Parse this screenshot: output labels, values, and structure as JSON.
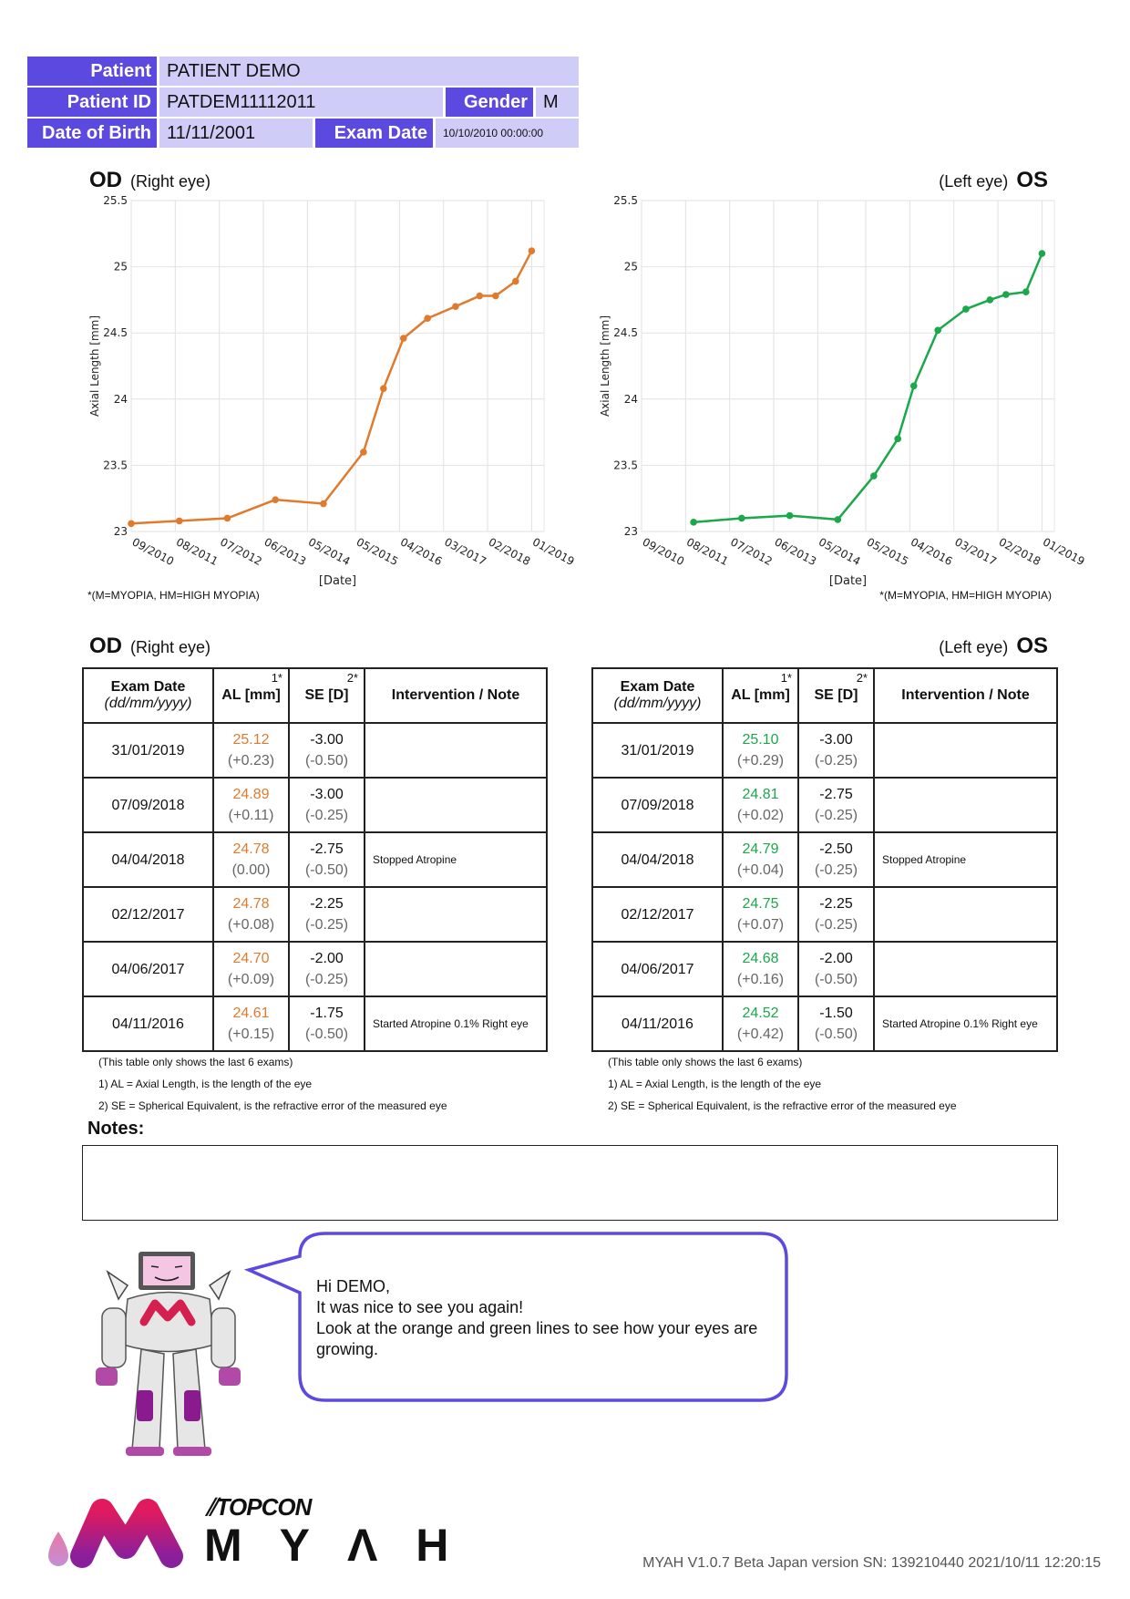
{
  "header": {
    "patient_label": "Patient",
    "patient_value": "PATIENT  DEMO",
    "id_label": "Patient ID",
    "id_value": "PATDEM11112011",
    "gender_label": "Gender",
    "gender_value": "M",
    "dob_label": "Date of Birth",
    "dob_value": "11/11/2001",
    "exam_label": "Exam Date",
    "exam_value": "10/10/2010 00:00:00"
  },
  "colors": {
    "header_label": "#5c4ae0",
    "header_value": "#d0ccf8",
    "od": "#e07b2e",
    "os": "#1aa84a",
    "bubble": "#5c4ae0"
  },
  "od": {
    "code": "OD",
    "name": "(Right eye)"
  },
  "os": {
    "code": "OS",
    "name": "(Left eye)"
  },
  "chart_footnote": "*(M=MYOPIA, HM=HIGH MYOPIA)",
  "chart_data": [
    {
      "type": "line",
      "eye": "OD",
      "ylabel": "Axial Length [mm]",
      "xlabel": "[Date]",
      "ylim": [
        23,
        25.5
      ],
      "yticks": [
        "23",
        "23.5",
        "24",
        "24.5",
        "25",
        "25.5"
      ],
      "xticks": [
        "09/2010",
        "08/2011",
        "07/2012",
        "06/2013",
        "05/2014",
        "05/2015",
        "04/2016",
        "03/2017",
        "02/2018",
        "01/2019"
      ],
      "grid": true,
      "color": "#e07b2e",
      "x": [
        "09/2010",
        "09/2011",
        "09/2012",
        "09/2013",
        "09/2014",
        "07/2015",
        "12/2015",
        "05/2016",
        "11/2016",
        "06/2017",
        "12/2017",
        "04/2018",
        "09/2018",
        "01/2019"
      ],
      "y": [
        23.06,
        23.08,
        23.1,
        23.24,
        23.21,
        23.6,
        24.08,
        24.46,
        24.61,
        24.7,
        24.78,
        24.78,
        24.89,
        25.12
      ]
    },
    {
      "type": "line",
      "eye": "OS",
      "ylabel": "Axial Length [mm]",
      "xlabel": "[Date]",
      "ylim": [
        23,
        25.5
      ],
      "yticks": [
        "23",
        "23.5",
        "24",
        "24.5",
        "25",
        "25.5"
      ],
      "xticks": [
        "09/2010",
        "08/2011",
        "07/2012",
        "06/2013",
        "05/2014",
        "05/2015",
        "04/2016",
        "03/2017",
        "02/2018",
        "01/2019"
      ],
      "grid": true,
      "color": "#1aa84a",
      "x": [
        "10/2011",
        "10/2012",
        "10/2013",
        "10/2014",
        "07/2015",
        "01/2016",
        "05/2016",
        "11/2016",
        "06/2017",
        "12/2017",
        "04/2018",
        "09/2018",
        "01/2019"
      ],
      "y": [
        23.07,
        23.1,
        23.12,
        23.09,
        23.42,
        23.7,
        24.1,
        24.52,
        24.68,
        24.75,
        24.79,
        24.81,
        25.1
      ]
    }
  ],
  "table_headers": {
    "date": "Exam Date",
    "date_fmt": "(dd/mm/yyyy)",
    "al": "AL [mm]",
    "al_sup": "1*",
    "se": "SE [D]",
    "se_sup": "2*",
    "note": "Intervention / Note"
  },
  "od_table": [
    {
      "date": "31/01/2019",
      "al": "25.12",
      "al_d": "(+0.23)",
      "se": "-3.00",
      "se_d": "(-0.50)",
      "note": ""
    },
    {
      "date": "07/09/2018",
      "al": "24.89",
      "al_d": "(+0.11)",
      "se": "-3.00",
      "se_d": "(-0.25)",
      "note": ""
    },
    {
      "date": "04/04/2018",
      "al": "24.78",
      "al_d": "(0.00)",
      "se": "-2.75",
      "se_d": "(-0.50)",
      "note": "Stopped Atropine"
    },
    {
      "date": "02/12/2017",
      "al": "24.78",
      "al_d": "(+0.08)",
      "se": "-2.25",
      "se_d": "(-0.25)",
      "note": ""
    },
    {
      "date": "04/06/2017",
      "al": "24.70",
      "al_d": "(+0.09)",
      "se": "-2.00",
      "se_d": "(-0.25)",
      "note": ""
    },
    {
      "date": "04/11/2016",
      "al": "24.61",
      "al_d": "(+0.15)",
      "se": "-1.75",
      "se_d": "(-0.50)",
      "note": "Started Atropine 0.1% Right eye"
    }
  ],
  "os_table": [
    {
      "date": "31/01/2019",
      "al": "25.10",
      "al_d": "(+0.29)",
      "se": "-3.00",
      "se_d": "(-0.25)",
      "note": ""
    },
    {
      "date": "07/09/2018",
      "al": "24.81",
      "al_d": "(+0.02)",
      "se": "-2.75",
      "se_d": "(-0.25)",
      "note": ""
    },
    {
      "date": "04/04/2018",
      "al": "24.79",
      "al_d": "(+0.04)",
      "se": "-2.50",
      "se_d": "(-0.25)",
      "note": "Stopped Atropine"
    },
    {
      "date": "02/12/2017",
      "al": "24.75",
      "al_d": "(+0.07)",
      "se": "-2.25",
      "se_d": "(-0.25)",
      "note": ""
    },
    {
      "date": "04/06/2017",
      "al": "24.68",
      "al_d": "(+0.16)",
      "se": "-2.00",
      "se_d": "(-0.50)",
      "note": ""
    },
    {
      "date": "04/11/2016",
      "al": "24.52",
      "al_d": "(+0.42)",
      "se": "-1.50",
      "se_d": "(-0.50)",
      "note": "Started Atropine 0.1% Right eye"
    }
  ],
  "table_notes": [
    "(This table only shows the last 6 exams)",
    "1) AL = Axial Length, is the length of the eye",
    "2) SE = Spherical Equivalent, is the refractive error of the measured eye"
  ],
  "notes": {
    "label": "Notes:",
    "value": ""
  },
  "message": {
    "lines": [
      "Hi DEMO,",
      "It was nice to see you again!",
      "Look at the orange and green lines to see how your eyes are growing."
    ]
  },
  "brand": {
    "topcon": "TOPCON",
    "myah": "M Y Λ H"
  },
  "version": "MYAH V1.0.7 Beta Japan version SN: 139210440 2021/10/11 12:20:15"
}
